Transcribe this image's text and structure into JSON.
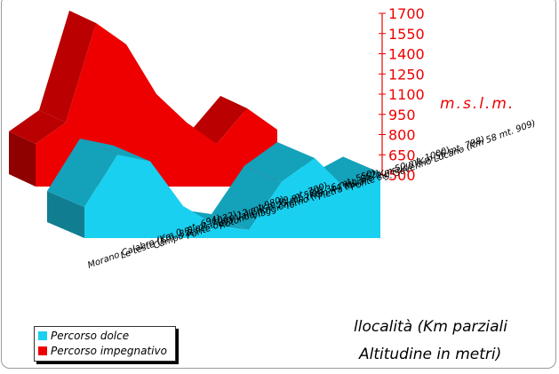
{
  "chart_data": {
    "type": "area",
    "style": "3d",
    "y_unit_label": "m.s.l.m.",
    "y_ticks": [
      500,
      650,
      800,
      950,
      1100,
      1250,
      1400,
      1550,
      1700
    ],
    "ylim": [
      500,
      1700
    ],
    "categories": [
      "Morano Calabro (Km 0 mt. 694)",
      "Le teste (Km. 8,5 mt. 1022)",
      "Campo Tenese (Km 12 mt 980)",
      "Ponte della Valle (Km 19 mt. 700)",
      "Rotonda (Km 25 mt 580)",
      "Viaggionello (Km 36 mt. 550)",
      "Torno (Km 44 mt. 852)",
      "Pietra Miliare (Km 50 mt. 1000)",
      "Ponte sul Frido (Km 56 mt. 798)",
      "S. Severino Lucano (Km 58 mt. 909)"
    ],
    "series": [
      {
        "name": "Percorso dolce",
        "color": "#1ad0f0",
        "values": [
          694,
          1022,
          980,
          700,
          580,
          550,
          852,
          1000,
          798,
          909
        ]
      },
      {
        "name": "Percorso impegnativo",
        "color": "#ee0000",
        "values": [
          800,
          950,
          1650,
          1500,
          1150,
          950,
          800,
          1050,
          900,
          null
        ]
      }
    ],
    "legend_position": "bottom-left",
    "x_title": "llocalità (Km parziali",
    "y_title": "Altitudine in metri)"
  }
}
